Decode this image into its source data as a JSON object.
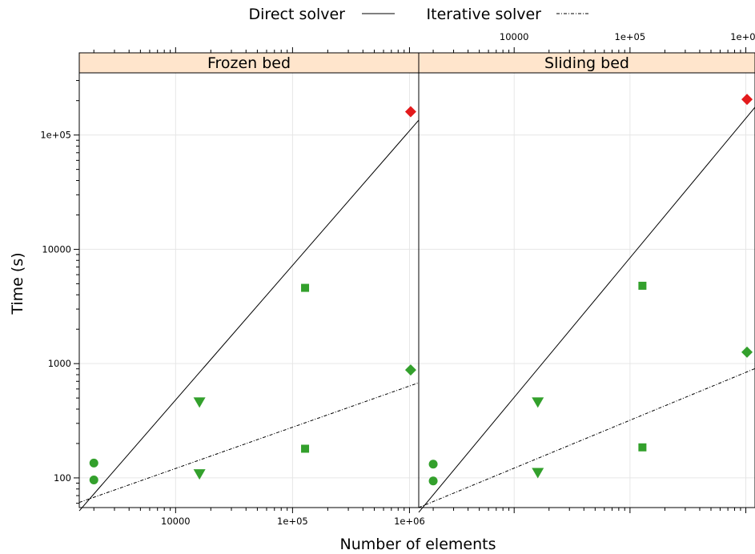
{
  "legend": {
    "items": [
      {
        "label": "Direct solver",
        "linestyle": "solid"
      },
      {
        "label": "Iterative solver",
        "linestyle": "dashdot"
      }
    ]
  },
  "axes": {
    "xlabel": "Number of elements",
    "ylabel": "Time (s)",
    "xscale": "log10",
    "yscale": "log10",
    "xlim": [
      1500,
      1200000
    ],
    "ylim": [
      55,
      350000
    ],
    "x_ticks_major": [
      {
        "value": 10000,
        "label": "10000"
      },
      {
        "value": 100000,
        "label": "1e+05"
      },
      {
        "value": 1000000,
        "label": "1e+06"
      }
    ],
    "y_ticks_major": [
      {
        "value": 100,
        "label": "100"
      },
      {
        "value": 1000,
        "label": "1000"
      },
      {
        "value": 10000,
        "label": "10000"
      },
      {
        "value": 100000,
        "label": "1e+05"
      }
    ],
    "x_ticks_top_labeled_panel": "Sliding bed",
    "x_ticks_bottom_labeled_panel": "Frozen bed"
  },
  "colors": {
    "green": "#33a02c",
    "red": "#e31a1c",
    "strip": "#ffe5cc",
    "grid": "#e6e6e6"
  },
  "chart_data": [
    {
      "type": "scatter",
      "panel": "Frozen bed",
      "points": [
        {
          "x": 2000,
          "y": 135,
          "shape": "circle",
          "color": "green"
        },
        {
          "x": 2000,
          "y": 96,
          "shape": "circle",
          "color": "green"
        },
        {
          "x": 16000,
          "y": 460,
          "shape": "triangle-down",
          "color": "green"
        },
        {
          "x": 16000,
          "y": 108,
          "shape": "triangle-down",
          "color": "green"
        },
        {
          "x": 128000,
          "y": 4600,
          "shape": "square",
          "color": "green"
        },
        {
          "x": 128000,
          "y": 180,
          "shape": "square",
          "color": "green"
        },
        {
          "x": 1024000,
          "y": 160000,
          "shape": "diamond",
          "color": "red"
        },
        {
          "x": 1024000,
          "y": 880,
          "shape": "diamond",
          "color": "green"
        }
      ],
      "lines": [
        {
          "name": "Direct solver",
          "linestyle": "solid",
          "x": [
            1500,
            1200000
          ],
          "y": [
            51.5,
            135000
          ]
        },
        {
          "name": "Iterative solver",
          "linestyle": "dashdot",
          "x": [
            1500,
            1200000
          ],
          "y": [
            61,
            680
          ]
        }
      ]
    },
    {
      "type": "scatter",
      "panel": "Sliding bed",
      "points": [
        {
          "x": 2000,
          "y": 132,
          "shape": "circle",
          "color": "green"
        },
        {
          "x": 2000,
          "y": 94,
          "shape": "circle",
          "color": "green"
        },
        {
          "x": 16000,
          "y": 460,
          "shape": "triangle-down",
          "color": "green"
        },
        {
          "x": 16000,
          "y": 111,
          "shape": "triangle-down",
          "color": "green"
        },
        {
          "x": 128000,
          "y": 4800,
          "shape": "square",
          "color": "green"
        },
        {
          "x": 128000,
          "y": 185,
          "shape": "square",
          "color": "green"
        },
        {
          "x": 1024000,
          "y": 205000,
          "shape": "diamond",
          "color": "red"
        },
        {
          "x": 1024000,
          "y": 1260,
          "shape": "diamond",
          "color": "green"
        }
      ],
      "lines": [
        {
          "name": "Direct solver",
          "linestyle": "solid",
          "x": [
            1500,
            1200000
          ],
          "y": [
            50,
            175000
          ]
        },
        {
          "name": "Iterative solver",
          "linestyle": "dashdot",
          "x": [
            1500,
            1200000
          ],
          "y": [
            55,
            905
          ]
        }
      ]
    }
  ]
}
